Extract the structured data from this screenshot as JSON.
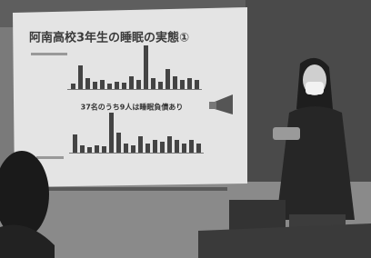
{
  "slide": {
    "title": "阿南高校3年生の睡眠の実態①",
    "subtitle": "37名のうち9人は睡眠負債あり"
  }
}
